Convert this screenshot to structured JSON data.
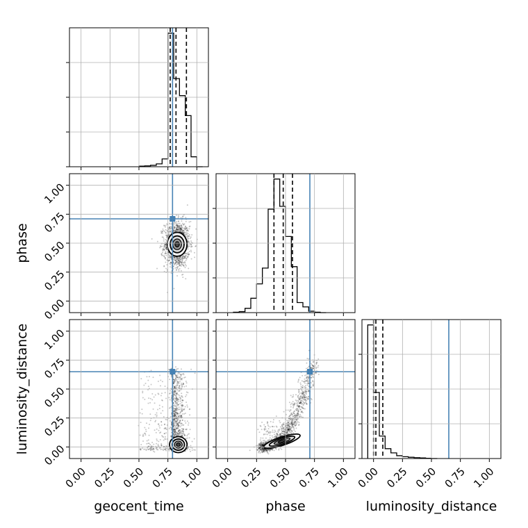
{
  "chart_data": {
    "type": "corner",
    "parameters": [
      "geocent_time",
      "phase",
      "luminosity_distance"
    ],
    "axis_range": [
      -0.1,
      1.1
    ],
    "tick_values": [
      0.0,
      0.25,
      0.5,
      0.75,
      1.0
    ],
    "tick_labels": [
      "0.00",
      "0.25",
      "0.50",
      "0.75",
      "1.00"
    ],
    "truths": {
      "geocent_time": 0.79,
      "phase": 0.71,
      "luminosity_distance": 0.65
    },
    "truth_color": "#4682b4",
    "grid": true,
    "histograms": [
      {
        "parameter": "geocent_time",
        "bin_edges": [
          0.5,
          0.55,
          0.6,
          0.65,
          0.7,
          0.75,
          0.8,
          0.85,
          0.9,
          0.95,
          1.0,
          1.05
        ],
        "heights": [
          0.004,
          0.006,
          0.01,
          0.02,
          0.055,
          0.94,
          0.62,
          0.5,
          0.36,
          0.07,
          0.0
        ],
        "quantiles": [
          0.77,
          0.82,
          0.91
        ]
      },
      {
        "parameter": "phase",
        "bin_edges": [
          0.05,
          0.1,
          0.15,
          0.2,
          0.25,
          0.3,
          0.35,
          0.4,
          0.45,
          0.5,
          0.55,
          0.6,
          0.65,
          0.7,
          0.75,
          0.8,
          0.85
        ],
        "heights": [
          0.003,
          0.007,
          0.03,
          0.1,
          0.2,
          0.31,
          0.72,
          0.93,
          0.74,
          0.53,
          0.32,
          0.07,
          0.04,
          0.01,
          0.003,
          0.0
        ],
        "quantiles": [
          0.4,
          0.48,
          0.56
        ]
      },
      {
        "parameter": "luminosity_distance",
        "bin_edges": [
          -0.05,
          0.0,
          0.05,
          0.1,
          0.15,
          0.2,
          0.25,
          0.3,
          0.35,
          0.4,
          0.45,
          0.5,
          0.55
        ],
        "heights": [
          0.95,
          0.47,
          0.16,
          0.07,
          0.04,
          0.02,
          0.013,
          0.009,
          0.006,
          0.004,
          0.002,
          0.0
        ],
        "quantiles": [
          0.0,
          0.02,
          0.08
        ]
      }
    ],
    "pairs": [
      {
        "x": "geocent_time",
        "y": "phase",
        "x_center": 0.83,
        "y_center": 0.49,
        "x_spread": 0.09,
        "y_spread": 0.09
      },
      {
        "x": "geocent_time",
        "y": "luminosity_distance",
        "x_center": 0.84,
        "y_center": 0.02,
        "x_spread": 0.08,
        "y_spread": 0.06
      },
      {
        "x": "phase",
        "y": "luminosity_distance",
        "x_center": 0.47,
        "y_center": 0.05,
        "x_spread": 0.11,
        "y_spread": 0.06
      }
    ]
  }
}
